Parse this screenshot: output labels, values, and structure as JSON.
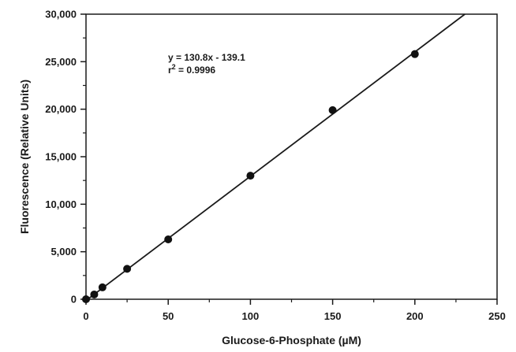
{
  "chart_data": {
    "type": "scatter",
    "title": "",
    "xlabel": "Glucose-6-Phosphate (µM)",
    "ylabel": "Fluorescence (Relative Units)",
    "xlim": [
      0,
      250
    ],
    "ylim": [
      0,
      30000
    ],
    "x_ticks": [
      "0",
      "50",
      "100",
      "150",
      "200",
      "250"
    ],
    "y_ticks": [
      "0",
      "5,000",
      "10,000",
      "15,000",
      "20,000",
      "25,000",
      "30,000"
    ],
    "x_tick_values": [
      0,
      50,
      100,
      150,
      200,
      250
    ],
    "y_tick_values": [
      0,
      5000,
      10000,
      15000,
      20000,
      25000,
      30000
    ],
    "grid": false,
    "series": [
      {
        "x": [
          0,
          5,
          10,
          25,
          50,
          100,
          150,
          200
        ],
        "y": [
          0,
          500,
          1250,
          3200,
          6300,
          13000,
          19900,
          25800
        ]
      }
    ],
    "fit_line": {
      "slope": 130.8,
      "intercept": -139.1
    },
    "annotations": {
      "equation": "y = 130.8x - 139.1",
      "r2_prefix": "r",
      "r2_superscript": "2",
      "r2_value": " = 0.9996"
    },
    "colors": {
      "axis": "#1a1a1a",
      "marker": "#111111",
      "line": "#1a1a1a"
    }
  }
}
